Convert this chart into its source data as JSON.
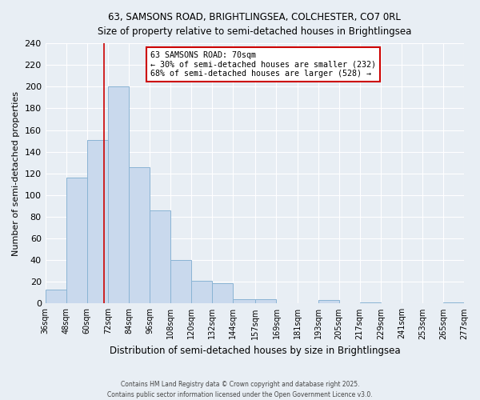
{
  "title_line1": "63, SAMSONS ROAD, BRIGHTLINGSEA, COLCHESTER, CO7 0RL",
  "title_line2": "Size of property relative to semi-detached houses in Brightlingsea",
  "xlabel": "Distribution of semi-detached houses by size in Brightlingsea",
  "ylabel": "Number of semi-detached properties",
  "bin_edges": [
    36,
    48,
    60,
    72,
    84,
    96,
    108,
    120,
    132,
    144,
    157,
    169,
    181,
    193,
    205,
    217,
    229,
    241,
    253,
    265,
    277
  ],
  "bin_counts": [
    13,
    116,
    151,
    200,
    126,
    86,
    40,
    21,
    19,
    4,
    4,
    0,
    0,
    3,
    0,
    1,
    0,
    0,
    0,
    1
  ],
  "bar_face_color": "#c9d9ed",
  "bar_edge_color": "#8ab4d4",
  "property_line_x": 70,
  "property_line_color": "#cc0000",
  "annotation_text_line1": "63 SAMSONS ROAD: 70sqm",
  "annotation_text_line2": "← 30% of semi-detached houses are smaller (232)",
  "annotation_text_line3": "68% of semi-detached houses are larger (528) →",
  "annotation_box_color": "#cc0000",
  "ylim": [
    0,
    240
  ],
  "yticks": [
    0,
    20,
    40,
    60,
    80,
    100,
    120,
    140,
    160,
    180,
    200,
    220,
    240
  ],
  "background_color": "#e8eef4",
  "grid_color": "#ffffff",
  "footer_line1": "Contains HM Land Registry data © Crown copyright and database right 2025.",
  "footer_line2": "Contains public sector information licensed under the Open Government Licence v3.0."
}
